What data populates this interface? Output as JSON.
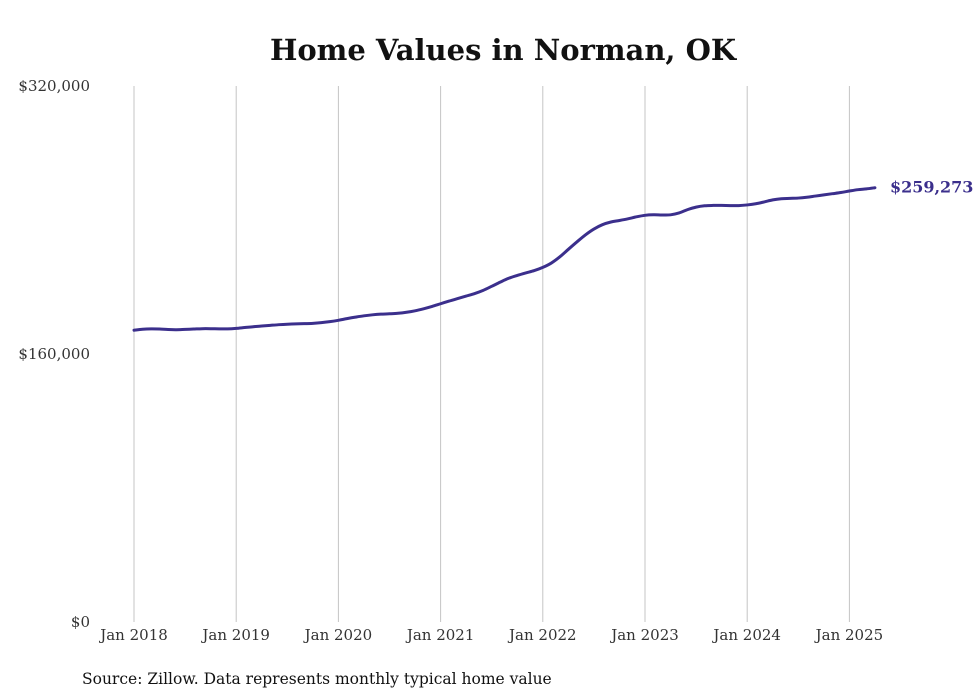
{
  "chart_data": {
    "type": "line",
    "title": "Home Values in Norman, OK",
    "xlabel": "",
    "ylabel": "",
    "ylim": [
      0,
      320000
    ],
    "xlim": [
      "2018-01",
      "2025-04"
    ],
    "grid": "vertical",
    "legend": "none",
    "y_ticks": [
      {
        "value": 0,
        "label": "$0"
      },
      {
        "value": 160000,
        "label": "$160,000"
      },
      {
        "value": 320000,
        "label": "$320,000"
      }
    ],
    "x_ticks": [
      {
        "value": "2018-01",
        "label": "Jan 2018"
      },
      {
        "value": "2019-01",
        "label": "Jan 2019"
      },
      {
        "value": "2020-01",
        "label": "Jan 2020"
      },
      {
        "value": "2021-01",
        "label": "Jan 2021"
      },
      {
        "value": "2022-01",
        "label": "Jan 2022"
      },
      {
        "value": "2023-01",
        "label": "Jan 2023"
      },
      {
        "value": "2024-01",
        "label": "Jan 2024"
      },
      {
        "value": "2025-01",
        "label": "Jan 2025"
      }
    ],
    "series": [
      {
        "color": "#3b2f8c",
        "end_label": "$259,273",
        "x": [
          "2018-01",
          "2018-02",
          "2018-03",
          "2018-04",
          "2018-05",
          "2018-06",
          "2018-07",
          "2018-08",
          "2018-09",
          "2018-10",
          "2018-11",
          "2018-12",
          "2019-01",
          "2019-02",
          "2019-03",
          "2019-04",
          "2019-05",
          "2019-06",
          "2019-07",
          "2019-08",
          "2019-09",
          "2019-10",
          "2019-11",
          "2019-12",
          "2020-01",
          "2020-02",
          "2020-03",
          "2020-04",
          "2020-05",
          "2020-06",
          "2020-07",
          "2020-08",
          "2020-09",
          "2020-10",
          "2020-11",
          "2020-12",
          "2021-01",
          "2021-02",
          "2021-03",
          "2021-04",
          "2021-05",
          "2021-06",
          "2021-07",
          "2021-08",
          "2021-09",
          "2021-10",
          "2021-11",
          "2021-12",
          "2022-01",
          "2022-02",
          "2022-03",
          "2022-04",
          "2022-05",
          "2022-06",
          "2022-07",
          "2022-08",
          "2022-09",
          "2022-10",
          "2022-11",
          "2022-12",
          "2023-01",
          "2023-02",
          "2023-03",
          "2023-04",
          "2023-05",
          "2023-06",
          "2023-07",
          "2023-08",
          "2023-09",
          "2023-10",
          "2023-11",
          "2023-12",
          "2024-01",
          "2024-02",
          "2024-03",
          "2024-04",
          "2024-05",
          "2024-06",
          "2024-07",
          "2024-08",
          "2024-09",
          "2024-10",
          "2024-11",
          "2024-12",
          "2025-01",
          "2025-02",
          "2025-03",
          "2025-04"
        ],
        "values": [
          174200,
          174800,
          175000,
          174900,
          174600,
          174500,
          174700,
          174900,
          175100,
          175100,
          175000,
          175000,
          175300,
          175800,
          176300,
          176700,
          177100,
          177500,
          177800,
          178000,
          178100,
          178300,
          178700,
          179300,
          180100,
          181100,
          182000,
          182800,
          183400,
          183800,
          184000,
          184300,
          184900,
          185800,
          187000,
          188400,
          190000,
          191600,
          193100,
          194600,
          196100,
          198000,
          200400,
          202900,
          205200,
          206900,
          208400,
          209800,
          211700,
          214300,
          218000,
          222500,
          226900,
          231100,
          234600,
          237200,
          238800,
          239700,
          240700,
          241900,
          242800,
          243100,
          243000,
          243100,
          244200,
          246200,
          247700,
          248500,
          248700,
          248700,
          248600,
          248600,
          249000,
          249700,
          250800,
          252000,
          252700,
          252900,
          253100,
          253600,
          254300,
          255000,
          255700,
          256400,
          257300,
          258100,
          258600,
          259273
        ]
      }
    ]
  },
  "source_note": "Source: Zillow. Data represents monthly typical home value"
}
